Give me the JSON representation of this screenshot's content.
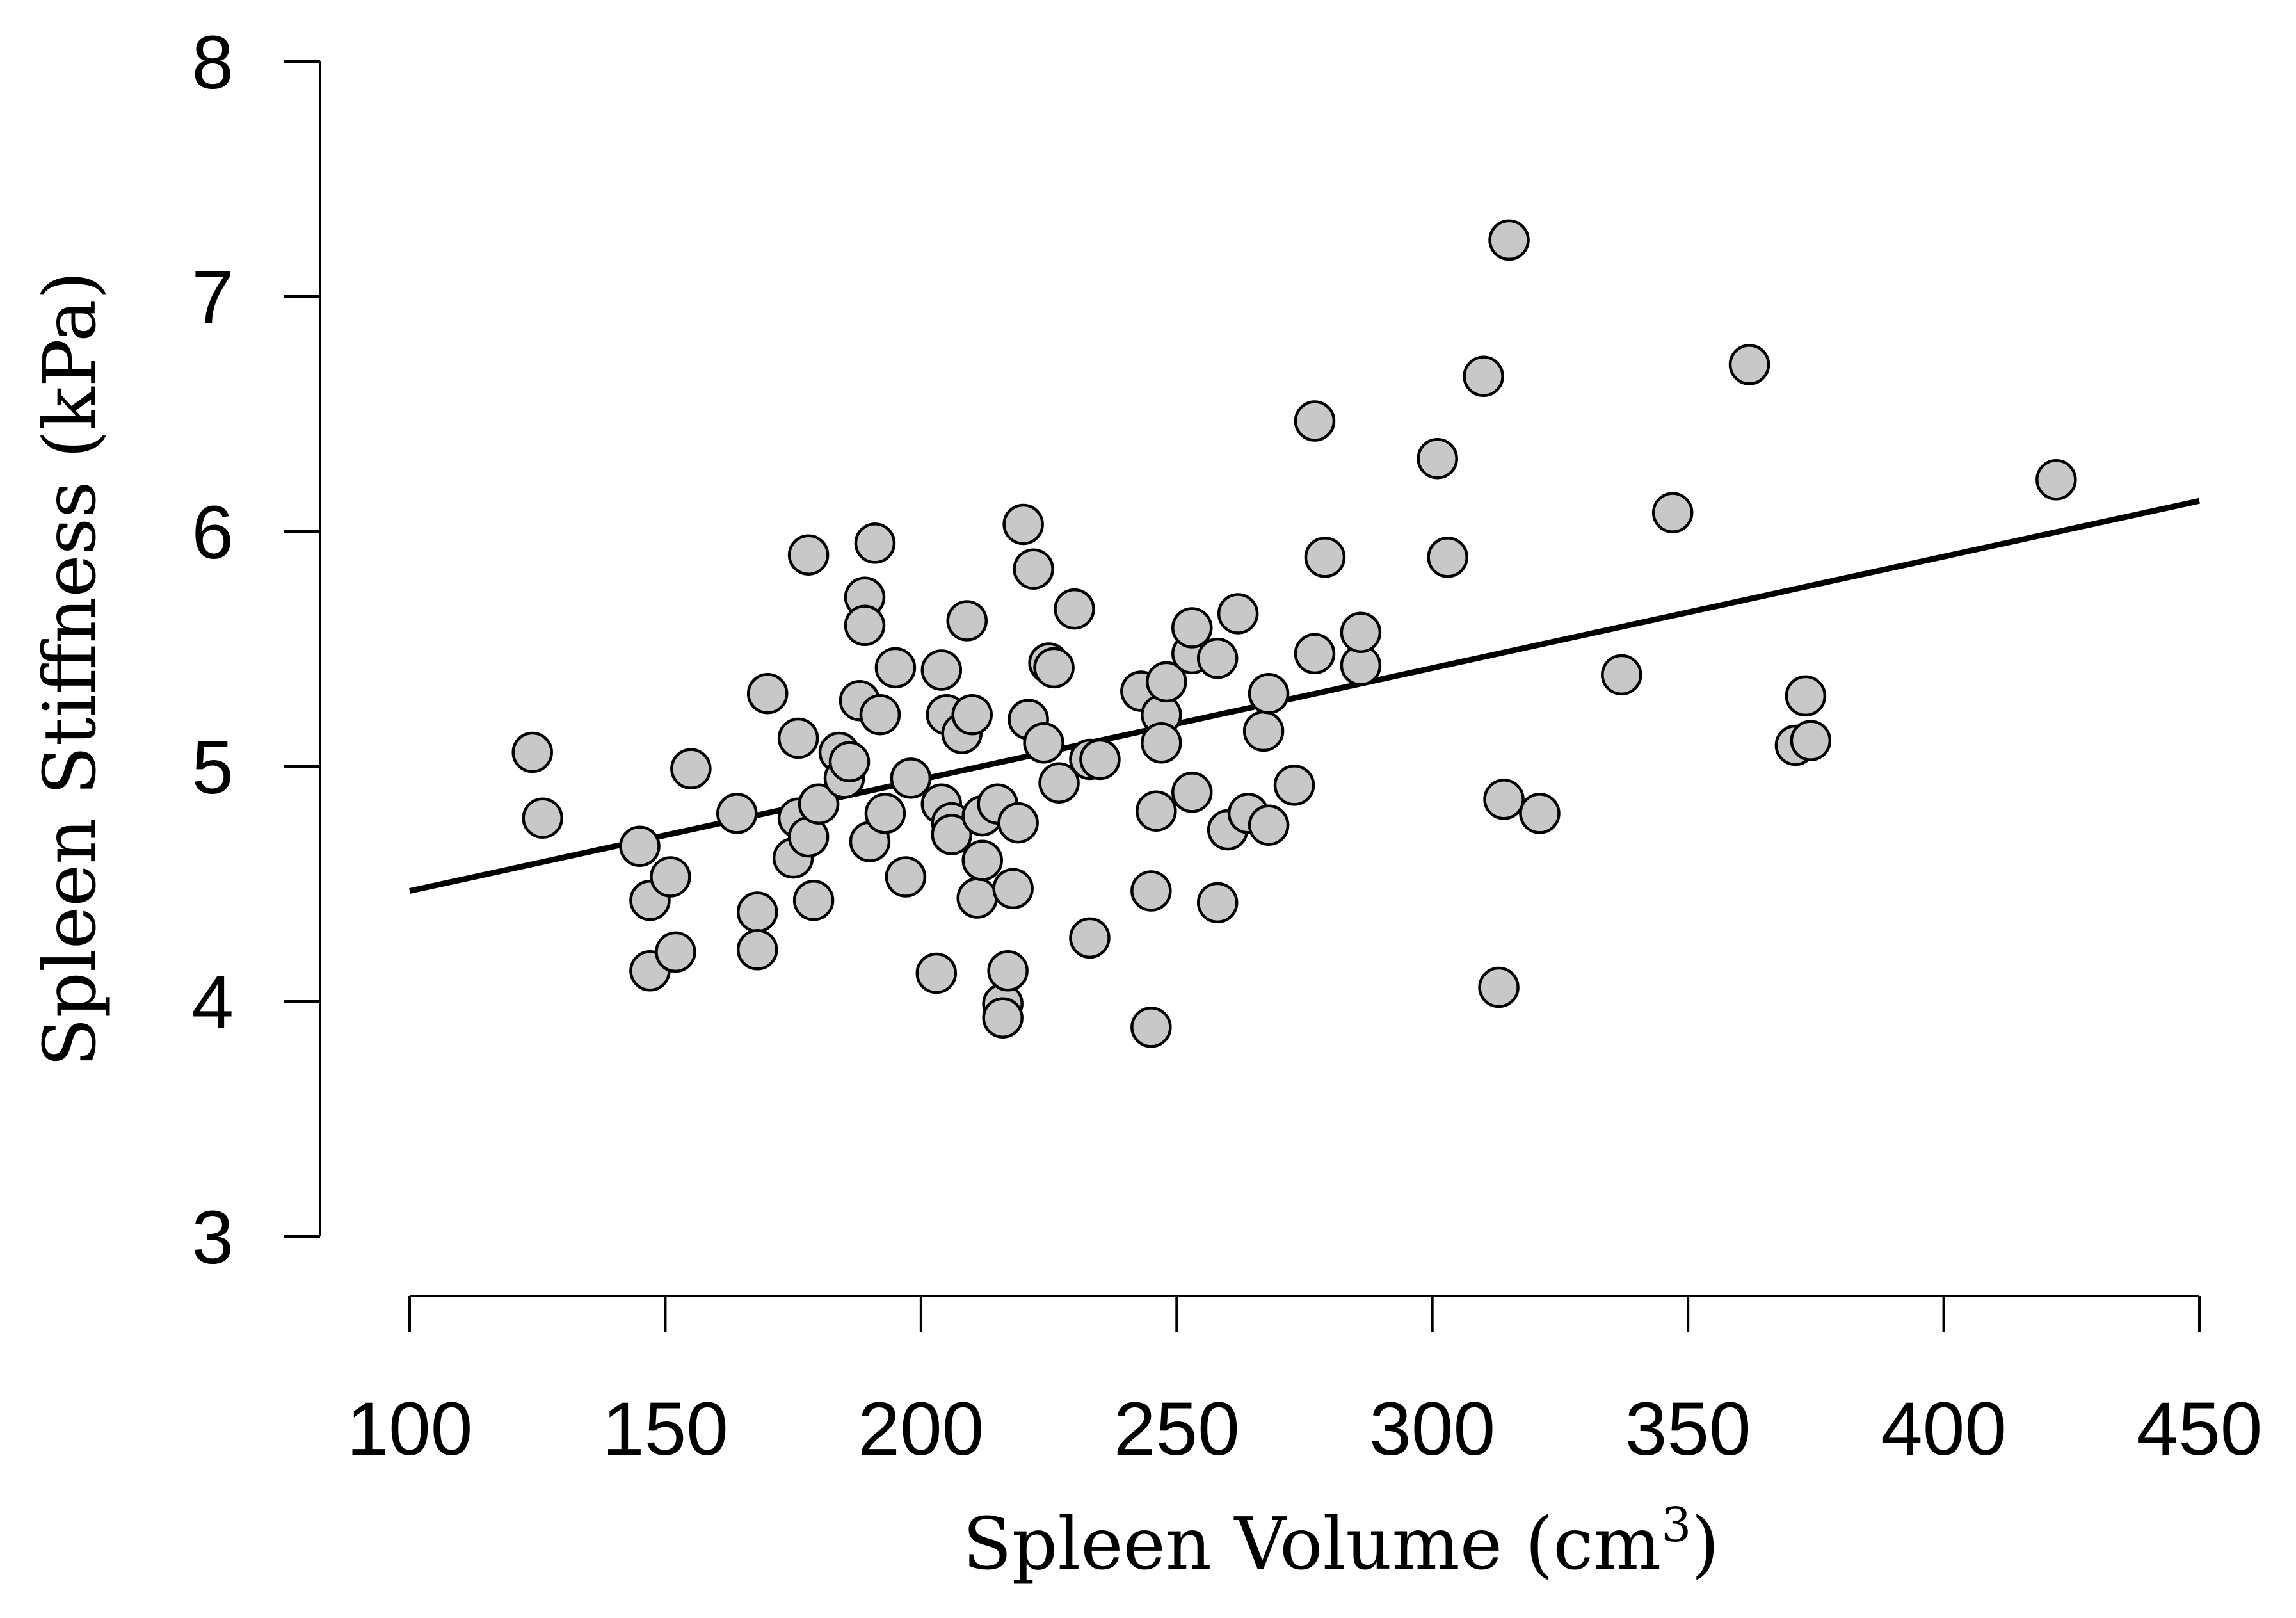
{
  "chart_data": {
    "type": "scatter",
    "title": "",
    "xlabel": "Spleen Volume (cm",
    "xlabel_superscript": "3",
    "xlabel_suffix": ")",
    "ylabel": "Spleen Stiffness (kPa)",
    "xlim": [
      100,
      450
    ],
    "ylim": [
      3,
      8
    ],
    "xticks": [
      100,
      150,
      200,
      250,
      300,
      350,
      400,
      450
    ],
    "yticks": [
      3,
      4,
      5,
      6,
      7,
      8
    ],
    "x_tick_labels": [
      "100",
      "150",
      "200",
      "250",
      "300",
      "350",
      "400",
      "450"
    ],
    "y_tick_labels": [
      "3",
      "4",
      "5",
      "6",
      "7",
      "8"
    ],
    "point_fill": "#c8c8c8",
    "point_stroke": "#000000",
    "line_color": "#000000",
    "fit_line": {
      "x": [
        100,
        450
      ],
      "y": [
        4.47,
        6.13
      ]
    },
    "points": [
      [
        124,
        5.06
      ],
      [
        126,
        4.78
      ],
      [
        145,
        4.66
      ],
      [
        147,
        4.43
      ],
      [
        147,
        4.13
      ],
      [
        151,
        4.53
      ],
      [
        152,
        4.21
      ],
      [
        155,
        4.99
      ],
      [
        164,
        4.8
      ],
      [
        168,
        4.38
      ],
      [
        168,
        4.22
      ],
      [
        170,
        5.31
      ],
      [
        175,
        4.61
      ],
      [
        176,
        4.78
      ],
      [
        176,
        5.12
      ],
      [
        178,
        4.7
      ],
      [
        178,
        5.9
      ],
      [
        179,
        4.43
      ],
      [
        180,
        4.84
      ],
      [
        184,
        5.06
      ],
      [
        185,
        4.95
      ],
      [
        186,
        5.02
      ],
      [
        188,
        5.28
      ],
      [
        189,
        5.72
      ],
      [
        189,
        5.6
      ],
      [
        190,
        4.68
      ],
      [
        191,
        5.95
      ],
      [
        192,
        5.22
      ],
      [
        193,
        4.8
      ],
      [
        195,
        5.42
      ],
      [
        197,
        4.53
      ],
      [
        198,
        4.95
      ],
      [
        203,
        4.12
      ],
      [
        204,
        5.41
      ],
      [
        204,
        4.84
      ],
      [
        205,
        5.22
      ],
      [
        206,
        4.76
      ],
      [
        206,
        4.71
      ],
      [
        208,
        5.14
      ],
      [
        209,
        5.62
      ],
      [
        210,
        5.22
      ],
      [
        211,
        4.44
      ],
      [
        212,
        4.6
      ],
      [
        212,
        4.79
      ],
      [
        215,
        4.84
      ],
      [
        216,
        3.99
      ],
      [
        216,
        3.93
      ],
      [
        217,
        4.13
      ],
      [
        218,
        4.48
      ],
      [
        219,
        4.76
      ],
      [
        220,
        6.03
      ],
      [
        221,
        5.2
      ],
      [
        222,
        5.84
      ],
      [
        224,
        5.1
      ],
      [
        225,
        5.44
      ],
      [
        226,
        5.42
      ],
      [
        227,
        4.93
      ],
      [
        230,
        5.67
      ],
      [
        233,
        4.27
      ],
      [
        233,
        5.03
      ],
      [
        235,
        5.03
      ],
      [
        243,
        5.32
      ],
      [
        245,
        4.47
      ],
      [
        245,
        3.89
      ],
      [
        246,
        4.81
      ],
      [
        247,
        5.22
      ],
      [
        247,
        5.1
      ],
      [
        248,
        5.36
      ],
      [
        253,
        5.48
      ],
      [
        253,
        4.89
      ],
      [
        253,
        5.59
      ],
      [
        258,
        4.42
      ],
      [
        258,
        5.46
      ],
      [
        260,
        4.73
      ],
      [
        262,
        5.65
      ],
      [
        264,
        4.8
      ],
      [
        267,
        5.15
      ],
      [
        268,
        5.31
      ],
      [
        268,
        4.75
      ],
      [
        273,
        4.92
      ],
      [
        277,
        5.48
      ],
      [
        277,
        6.47
      ],
      [
        279,
        5.89
      ],
      [
        286,
        5.43
      ],
      [
        286,
        5.57
      ],
      [
        301,
        6.31
      ],
      [
        303,
        5.89
      ],
      [
        310,
        6.66
      ],
      [
        313,
        4.06
      ],
      [
        314,
        4.86
      ],
      [
        315,
        7.24
      ],
      [
        321,
        4.8
      ],
      [
        337,
        5.39
      ],
      [
        347,
        6.08
      ],
      [
        362,
        6.71
      ],
      [
        371,
        5.09
      ],
      [
        373,
        5.3
      ],
      [
        374,
        5.11
      ],
      [
        422,
        6.22
      ]
    ]
  }
}
